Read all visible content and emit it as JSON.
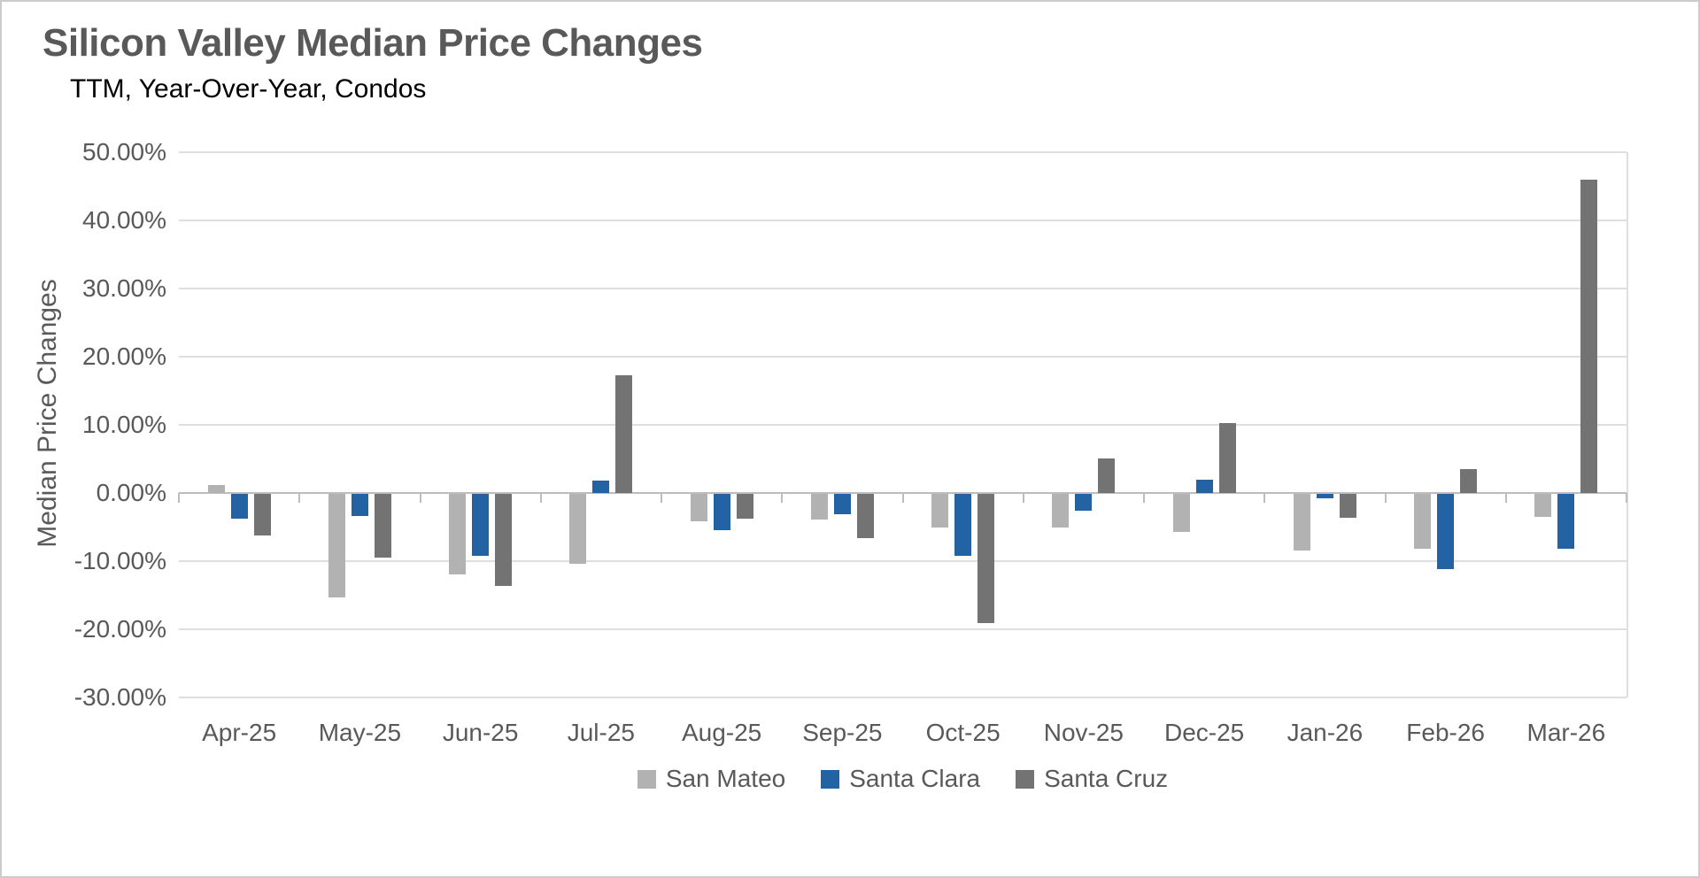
{
  "header": {
    "title": "Silicon Valley Median Price Changes",
    "subtitle": "TTM, Year-Over-Year, Condos"
  },
  "chart_data": {
    "type": "bar",
    "title": "Silicon Valley Median Price Changes",
    "subtitle": "TTM, Year-Over-Year, Condos",
    "xlabel": "",
    "ylabel": "Median Price Changes",
    "unit": "%",
    "grid": true,
    "legend_position": "bottom",
    "categories": [
      "Apr-25",
      "May-25",
      "Jun-25",
      "Jul-25",
      "Aug-25",
      "Sep-25",
      "Oct-25",
      "Nov-25",
      "Dec-25",
      "Jan-26",
      "Feb-26",
      "Mar-26"
    ],
    "series": [
      {
        "name": "San Mateo",
        "color": "#b2b2b2",
        "values": [
          1.2,
          -15.2,
          -11.8,
          -10.3,
          -4.0,
          -3.8,
          -4.9,
          -4.9,
          -5.6,
          -8.3,
          -8.0,
          -3.4
        ]
      },
      {
        "name": "Santa Clara",
        "color": "#2363a3",
        "values": [
          -3.6,
          -3.2,
          -9.1,
          1.8,
          -5.3,
          -3.0,
          -9.1,
          -2.5,
          2.0,
          -0.6,
          -11.0,
          -8.0
        ]
      },
      {
        "name": "Santa Cruz",
        "color": "#737373",
        "values": [
          -6.1,
          -9.3,
          -13.5,
          17.3,
          -3.7,
          -6.5,
          -18.9,
          5.1,
          10.3,
          -3.5,
          3.5,
          46.0
        ]
      }
    ],
    "y_axis": {
      "min": -30,
      "max": 50,
      "step": 10,
      "tick_labels": [
        "50.00%",
        "40.00%",
        "30.00%",
        "20.00%",
        "10.00%",
        "0.00%",
        "-10.00%",
        "-20.00%",
        "-30.00%"
      ]
    },
    "colors": {
      "title_text": "#595959",
      "axis_text": "#595959",
      "gridline": "#dedede",
      "zero_axis": "#bdbdbd"
    }
  }
}
